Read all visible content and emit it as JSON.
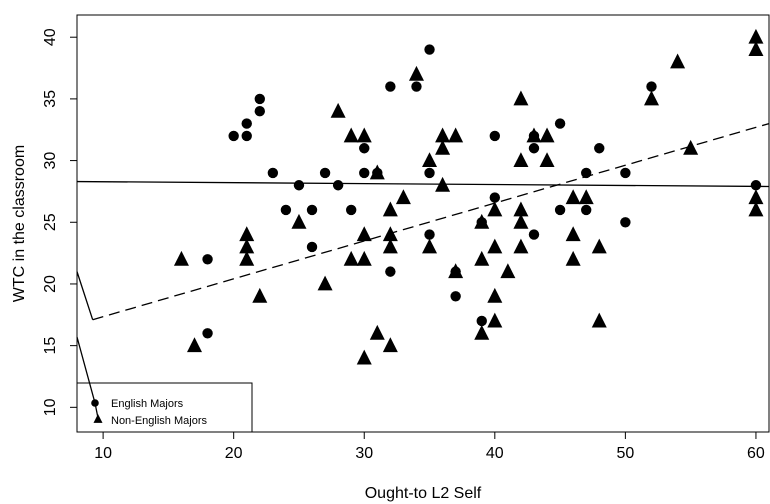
{
  "chart_data": {
    "type": "scatter",
    "xlabel": "Ought-to L2 Self",
    "ylabel": "WTC in the classroom",
    "xlim": [
      8,
      61
    ],
    "ylim": [
      8,
      41.8
    ],
    "x_ticks": [
      10,
      20,
      30,
      40,
      50,
      60
    ],
    "y_ticks": [
      10,
      15,
      20,
      25,
      30,
      35,
      40
    ],
    "legend_position": "bottom-left",
    "grid": false,
    "series": [
      {
        "name": "English Majors",
        "marker": "circle",
        "fit_line_style": "solid",
        "fit_line": [
          [
            8,
            28.3
          ],
          [
            61,
            27.9
          ]
        ],
        "points": [
          [
            18,
            22
          ],
          [
            18,
            16
          ],
          [
            20,
            32
          ],
          [
            21,
            32
          ],
          [
            21,
            33
          ],
          [
            22,
            35
          ],
          [
            22,
            34
          ],
          [
            23,
            29
          ],
          [
            24,
            26
          ],
          [
            25,
            28
          ],
          [
            26,
            26
          ],
          [
            26,
            23
          ],
          [
            27,
            29
          ],
          [
            28,
            28
          ],
          [
            29,
            26
          ],
          [
            30,
            31
          ],
          [
            30,
            29
          ],
          [
            31,
            29
          ],
          [
            32,
            36
          ],
          [
            32,
            21
          ],
          [
            34,
            36
          ],
          [
            35,
            39
          ],
          [
            35,
            29
          ],
          [
            35,
            24
          ],
          [
            37,
            21
          ],
          [
            37,
            19
          ],
          [
            39,
            25
          ],
          [
            39,
            17
          ],
          [
            40,
            32
          ],
          [
            40,
            27
          ],
          [
            43,
            32
          ],
          [
            43,
            31
          ],
          [
            43,
            24
          ],
          [
            45,
            33
          ],
          [
            45,
            26
          ],
          [
            47,
            29
          ],
          [
            47,
            26
          ],
          [
            48,
            31
          ],
          [
            50,
            29
          ],
          [
            50,
            25
          ],
          [
            52,
            36
          ],
          [
            60,
            28
          ]
        ]
      },
      {
        "name": "Non-English Majors",
        "marker": "triangle",
        "fit_line_style": "dashed",
        "fit_line": [
          [
            9.2,
            17.1
          ],
          [
            61,
            33
          ]
        ],
        "points": [
          [
            16,
            22
          ],
          [
            17,
            15
          ],
          [
            21,
            24
          ],
          [
            21,
            23
          ],
          [
            21,
            22
          ],
          [
            22,
            19
          ],
          [
            25,
            25
          ],
          [
            27,
            20
          ],
          [
            28,
            34
          ],
          [
            29,
            32
          ],
          [
            29,
            22
          ],
          [
            30,
            32
          ],
          [
            30,
            22
          ],
          [
            30,
            24
          ],
          [
            30,
            14
          ],
          [
            31,
            29
          ],
          [
            31,
            16
          ],
          [
            32,
            26
          ],
          [
            32,
            24
          ],
          [
            32,
            23
          ],
          [
            32,
            15
          ],
          [
            33,
            27
          ],
          [
            34,
            37
          ],
          [
            35,
            30
          ],
          [
            35,
            23
          ],
          [
            36,
            32
          ],
          [
            36,
            31
          ],
          [
            36,
            28
          ],
          [
            37,
            32
          ],
          [
            37,
            21
          ],
          [
            39,
            25
          ],
          [
            39,
            22
          ],
          [
            39,
            16
          ],
          [
            40,
            23
          ],
          [
            40,
            26
          ],
          [
            40,
            19
          ],
          [
            40,
            17
          ],
          [
            41,
            21
          ],
          [
            42,
            35
          ],
          [
            42,
            30
          ],
          [
            42,
            26
          ],
          [
            42,
            25
          ],
          [
            42,
            23
          ],
          [
            43,
            32
          ],
          [
            44,
            30
          ],
          [
            44,
            32
          ],
          [
            46,
            27
          ],
          [
            46,
            24
          ],
          [
            46,
            22
          ],
          [
            47,
            27
          ],
          [
            48,
            23
          ],
          [
            48,
            17
          ],
          [
            52,
            35
          ],
          [
            54,
            38
          ],
          [
            55,
            31
          ],
          [
            60,
            40
          ],
          [
            60,
            39
          ],
          [
            60,
            27
          ],
          [
            60,
            26
          ]
        ]
      }
    ]
  }
}
